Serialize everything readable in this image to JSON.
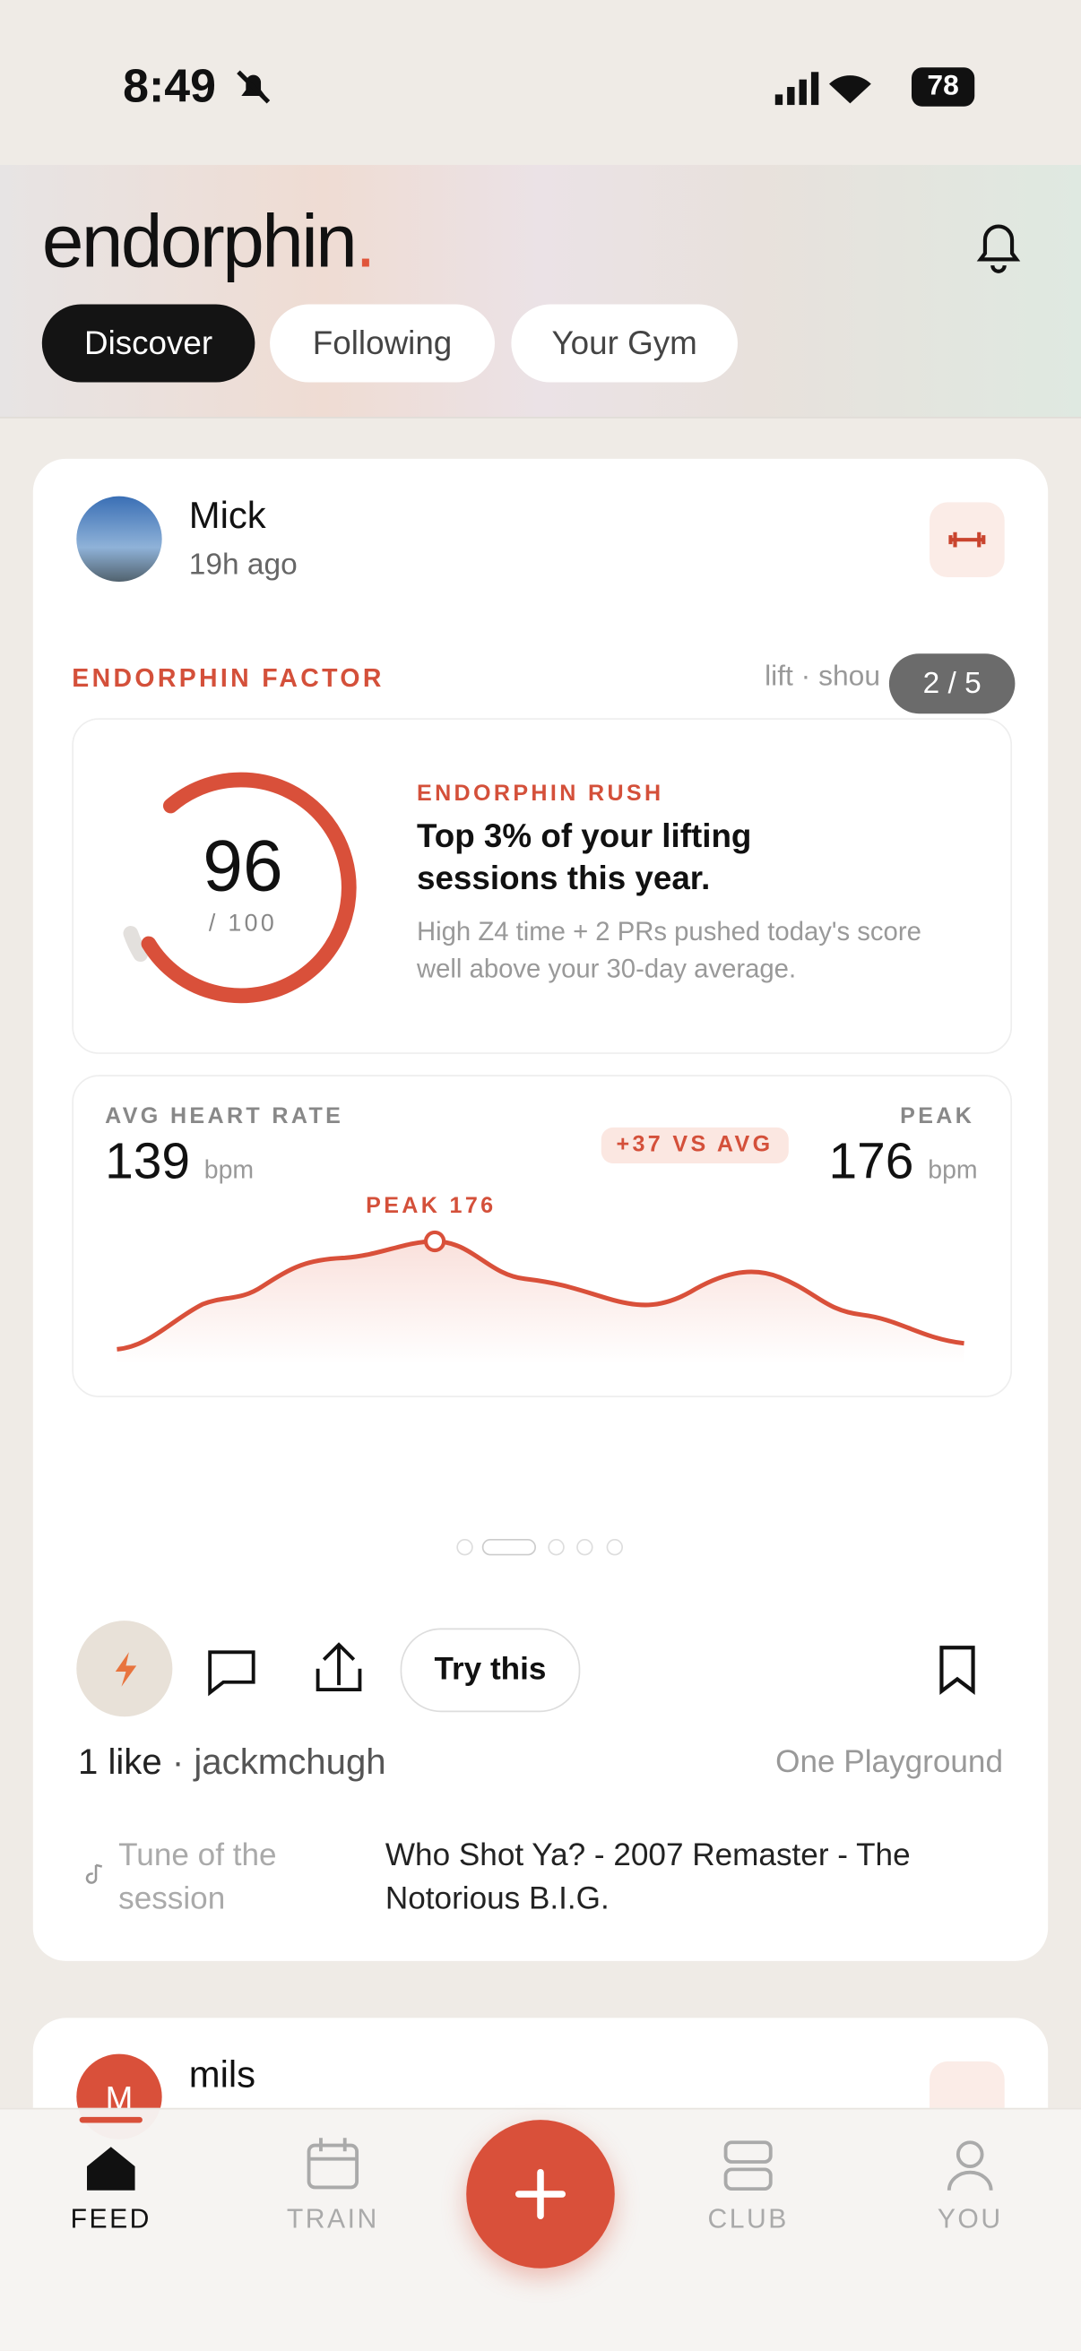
{
  "status_bar": {
    "time": "8:49",
    "battery": "78"
  },
  "header": {
    "brand": "endorphin",
    "brand_dot": ".",
    "tabs": [
      "Discover",
      "Following",
      "Your Gym"
    ]
  },
  "post": {
    "user": "Mick",
    "time": "19h ago",
    "section": "ENDORPHIN FACTOR",
    "tags": "lift · shou",
    "pager": "2 / 5",
    "factor": {
      "score": 96,
      "max": "/ 100",
      "label": "ENDORPHIN RUSH",
      "headline": "Top 3% of your lifting sessions this year.",
      "body": "High Z4 time + 2 PRs pushed today's score well above your 30-day average."
    },
    "heart_rate": {
      "avg_label": "AVG HEART RATE",
      "avg": 139,
      "avg_unit": "bpm",
      "delta": "+37 VS AVG",
      "peak_label": "PEAK",
      "peak": 176,
      "peak_unit": "bpm",
      "peak_marker": "PEAK 176"
    },
    "try_button": "Try this",
    "likes": "1 like",
    "liker": "· jackmchugh",
    "gym": "One Playground",
    "tune_label": "Tune of the session",
    "tune": "Who Shot Ya? - 2007 Remaster - The Notorious B.I.G."
  },
  "next_post": {
    "avatar": "M",
    "user": "mils"
  },
  "nav": [
    "FEED",
    "TRAIN",
    "CLUB",
    "YOU"
  ]
}
